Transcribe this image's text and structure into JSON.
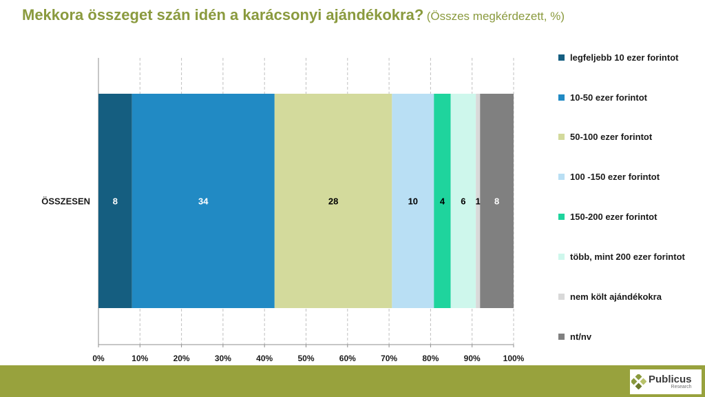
{
  "title": {
    "main": "Mekkora összeget szán idén a karácsonyi ajándékokra?",
    "sub": "(Összes megkérdezett, %)"
  },
  "chart_data": {
    "type": "bar",
    "orientation": "horizontal",
    "stacked": "percent",
    "categories": [
      "ÖSSZESEN"
    ],
    "series": [
      {
        "name": "legfeljebb 10 ezer forintot",
        "values": [
          8
        ],
        "color": "#155e80",
        "label_color": "#ffffff"
      },
      {
        "name": "10-50 ezer forintot",
        "values": [
          34
        ],
        "color": "#218ac4",
        "label_color": "#ffffff"
      },
      {
        "name": "50-100 ezer forintot",
        "values": [
          28
        ],
        "color": "#d3da9c",
        "label_color": "#000000"
      },
      {
        "name": "100 -150 ezer forintot",
        "values": [
          10
        ],
        "color": "#b9dff4",
        "label_color": "#000000"
      },
      {
        "name": "150-200 ezer forintot",
        "values": [
          4
        ],
        "color": "#1fd49d",
        "label_color": "#000000"
      },
      {
        "name": "több, mint 200 ezer forintot",
        "values": [
          6
        ],
        "color": "#cef7ec",
        "label_color": "#000000"
      },
      {
        "name": "nem költ ajándékokra",
        "values": [
          1
        ],
        "color": "#d9d9d9",
        "label_color": "#000000"
      },
      {
        "name": "nt/nv",
        "values": [
          8
        ],
        "color": "#808080",
        "label_color": "#ffffff"
      }
    ],
    "xlim": [
      0,
      100
    ],
    "xticks": [
      "0%",
      "10%",
      "20%",
      "30%",
      "40%",
      "50%",
      "60%",
      "70%",
      "80%",
      "90%",
      "100%"
    ],
    "grid": "vertical dashed",
    "legend": "right"
  },
  "footer": {
    "logo_name": "Publicus",
    "logo_sub": "Research"
  }
}
